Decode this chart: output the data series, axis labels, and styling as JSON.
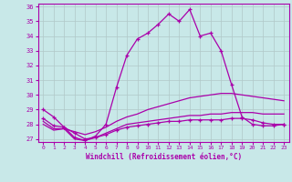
{
  "xlabel": "Windchill (Refroidissement éolien,°C)",
  "xlim": [
    -0.5,
    23.5
  ],
  "ylim": [
    26.8,
    36.2
  ],
  "yticks": [
    27,
    28,
    29,
    30,
    31,
    32,
    33,
    34,
    35,
    36
  ],
  "xticks": [
    0,
    1,
    2,
    3,
    4,
    5,
    6,
    7,
    8,
    9,
    10,
    11,
    12,
    13,
    14,
    15,
    16,
    17,
    18,
    19,
    20,
    21,
    22,
    23
  ],
  "background_color": "#c8e8e8",
  "grid_color": "#b0c8c8",
  "line_color": "#aa00aa",
  "line1_y": [
    29.0,
    28.5,
    27.8,
    27.1,
    26.9,
    27.2,
    28.0,
    30.5,
    32.7,
    33.8,
    34.2,
    34.8,
    35.5,
    35.0,
    35.8,
    34.0,
    34.2,
    33.0,
    30.7,
    28.5,
    28.0,
    27.9,
    27.9,
    28.0
  ],
  "line2_y": [
    28.2,
    27.7,
    27.7,
    27.5,
    27.3,
    27.5,
    27.8,
    28.2,
    28.5,
    28.7,
    29.0,
    29.2,
    29.4,
    29.6,
    29.8,
    29.9,
    30.0,
    30.1,
    30.1,
    30.0,
    29.9,
    29.8,
    29.7,
    29.6
  ],
  "line3_y": [
    28.0,
    27.6,
    27.7,
    27.0,
    26.9,
    27.1,
    27.4,
    27.7,
    28.0,
    28.1,
    28.2,
    28.3,
    28.4,
    28.5,
    28.6,
    28.6,
    28.7,
    28.7,
    28.8,
    28.8,
    28.8,
    28.7,
    28.7,
    28.7
  ],
  "line4_y": [
    28.4,
    27.9,
    27.8,
    27.4,
    27.0,
    27.1,
    27.3,
    27.6,
    27.8,
    27.9,
    28.0,
    28.1,
    28.2,
    28.2,
    28.3,
    28.3,
    28.3,
    28.3,
    28.4,
    28.4,
    28.3,
    28.1,
    28.0,
    28.0
  ]
}
